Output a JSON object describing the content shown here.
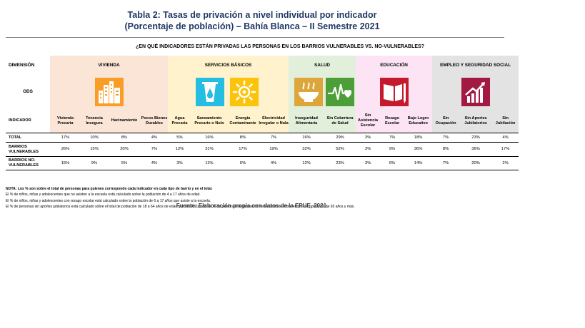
{
  "title": {
    "line1": "Tabla 2: Tasas de privación a nivel individual por indicador",
    "line2": "(Porcentaje de población) – Bahía Blanca – II Semestre 2021"
  },
  "question": "¿EN QUÉ INDICADORES ESTÁN PRIVADAS LAS PERSONAS EN LOS BARRIOS VULNERABLES VS. NO-VULNERABLES?",
  "row_labels": {
    "dimension": "DIMENSIÓN",
    "ods": "ODS",
    "indicator": "INDICADOR",
    "total": "TOTAL",
    "vulnerables": "BARRIOS VULNERABLES",
    "no_vulnerables": "BARRIOS NO-VULNERABLES"
  },
  "dimensions": [
    {
      "name": "VIVIENDA",
      "color": "#FBE5D6",
      "ods_color": "#F99D26",
      "ods_icon": "city-buildings-icon"
    },
    {
      "name": "SERVICIOS BÁSICOS",
      "color": "#FFF2CC",
      "ods_color": "#26BDE2",
      "ods_icon": "water-drop-icon"
    },
    {
      "name": "SALUD",
      "color": "#E2EFDA",
      "ods_color": "#4C9F38",
      "ods_icon": "heartbeat-icon"
    },
    {
      "name": "EDUCACIÓN",
      "color": "#FCE4F4",
      "ods_color": "#C5192D",
      "ods_icon": "book-icon"
    },
    {
      "name": "EMPLEO Y SEGURIDAD SOCIAL",
      "color": "#E3E3E3",
      "ods_color": "#A21942",
      "ods_icon": "growth-chart-icon"
    }
  ],
  "extra_icons": {
    "serv2": {
      "ods_color": "#FCC30B",
      "ods_icon": "sun-icon"
    },
    "sal1": {
      "ods_color": "#DDA63A",
      "ods_icon": "food-bowl-icon"
    }
  },
  "indicators": [
    "Vivienda Precaria",
    "Tenencia Insegura",
    "Hacinamiento",
    "Pocos Bienes Durables",
    "Agua Precaria",
    "Saneamiento Precario o Nulo",
    "Energía Contaminante",
    "Electricidad Irregular o Nula",
    "Inseguridad Alimentaria",
    "Sin Cobertura de Salud",
    "Sin Asistencia Escolar",
    "Rezago Escolar",
    "Bajo Logro Educativo",
    "Sin Ocupación",
    "Sin Aportes Jubilatorios",
    "Sin Jubilación"
  ],
  "values": {
    "total": [
      "17%",
      "10%",
      "8%",
      "4%",
      "5%",
      "16%",
      "8%",
      "7%",
      "16%",
      "29%",
      "3%",
      "7%",
      "18%",
      "7%",
      "23%",
      "4%"
    ],
    "vulnerables": [
      "26%",
      "15%",
      "20%",
      "7%",
      "12%",
      "31%",
      "17%",
      "19%",
      "32%",
      "52%",
      "3%",
      "9%",
      "36%",
      "8%",
      "36%",
      "17%"
    ],
    "no_vulnerables": [
      "15%",
      "9%",
      "5%",
      "4%",
      "3%",
      "11%",
      "6%",
      "4%",
      "12%",
      "23%",
      "3%",
      "6%",
      "14%",
      "7%",
      "20%",
      "2%"
    ]
  },
  "notes": [
    "NOTA: Los % son sobre el total de personas para quienes corresponde cada indicador en cada tipo de barrio y en el total.",
    "El % de niños, niñas y adolescentes que no asisten a la escuela está calculado sobre la población de 4 a 17 años de edad.",
    "El % de niños, niñas y adolescentes con rezago escolar está calculado sobre la población de 6 a 17 años que asiste a la escuela.",
    "El % de personas sin aportes jubilatorios está calculado sobre el total de población de 18 a 64 años de edad que está ocupada. El % de personas sin jubilación está calculado sobre el total de población de 65 años y más."
  ],
  "source": "Fuente: Elaboración propia con datos de la EPUE, 2021."
}
